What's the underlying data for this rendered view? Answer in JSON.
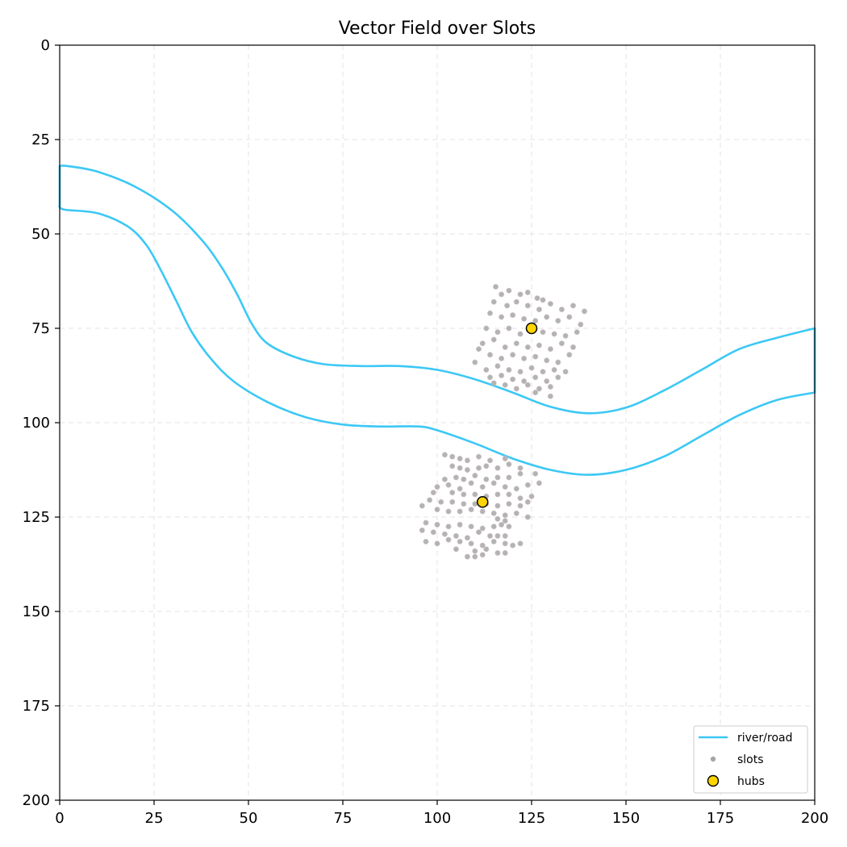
{
  "chart_data": {
    "type": "scatter",
    "title": "Vector Field over Slots",
    "xlabel": "",
    "ylabel": "",
    "xlim": [
      0,
      200
    ],
    "ylim": [
      200,
      0
    ],
    "y_inverted": true,
    "grid": true,
    "x_ticks": [
      "0",
      "25",
      "50",
      "75",
      "100",
      "125",
      "150",
      "175",
      "200"
    ],
    "y_ticks": [
      "0",
      "25",
      "50",
      "75",
      "100",
      "125",
      "150",
      "175",
      "200"
    ],
    "legend_position": "bottom-right",
    "legend": [
      {
        "label": "river/road",
        "kind": "line",
        "color": "#3cc8f5"
      },
      {
        "label": "slots",
        "kind": "dot",
        "color": "#a6a6a6"
      },
      {
        "label": "hubs",
        "kind": "hub",
        "color": "#ffd400"
      }
    ],
    "series": [
      {
        "name": "river/road",
        "type": "line",
        "color": "#3cc8f5",
        "upper_edge": [
          [
            0,
            32
          ],
          [
            2,
            32
          ],
          [
            10,
            33.5
          ],
          [
            20,
            37.5
          ],
          [
            30,
            44
          ],
          [
            38,
            52
          ],
          [
            43,
            59
          ],
          [
            47,
            66
          ],
          [
            51,
            74
          ],
          [
            55,
            79
          ],
          [
            62,
            82.5
          ],
          [
            70,
            84.5
          ],
          [
            80,
            85
          ],
          [
            90,
            85
          ],
          [
            100,
            86
          ],
          [
            110,
            88.5
          ],
          [
            120,
            92
          ],
          [
            130,
            95.8
          ],
          [
            140,
            97.5
          ],
          [
            150,
            96
          ],
          [
            160,
            91.5
          ],
          [
            170,
            86
          ],
          [
            180,
            80.5
          ],
          [
            190,
            77.5
          ],
          [
            200,
            75
          ]
        ],
        "lower_edge": [
          [
            0,
            42
          ],
          [
            1,
            43.5
          ],
          [
            10,
            44.5
          ],
          [
            18,
            48
          ],
          [
            23,
            53
          ],
          [
            27,
            60
          ],
          [
            31,
            68
          ],
          [
            35,
            76
          ],
          [
            40,
            83
          ],
          [
            46,
            89
          ],
          [
            55,
            94.5
          ],
          [
            65,
            98.5
          ],
          [
            75,
            100.5
          ],
          [
            85,
            101
          ],
          [
            95,
            101
          ],
          [
            100,
            102
          ],
          [
            110,
            105.5
          ],
          [
            120,
            109.5
          ],
          [
            130,
            112.5
          ],
          [
            140,
            113.8
          ],
          [
            150,
            112.5
          ],
          [
            160,
            109
          ],
          [
            170,
            103.5
          ],
          [
            180,
            98
          ],
          [
            190,
            94
          ],
          [
            200,
            92
          ]
        ]
      },
      {
        "name": "slots",
        "type": "scatter",
        "color": "#a6a6a6",
        "points": [
          [
            115.5,
            64
          ],
          [
            117,
            66
          ],
          [
            119,
            65
          ],
          [
            122,
            66
          ],
          [
            124,
            65.5
          ],
          [
            126.5,
            67
          ],
          [
            128,
            67.5
          ],
          [
            115,
            68
          ],
          [
            118.5,
            69
          ],
          [
            121,
            68
          ],
          [
            124,
            69
          ],
          [
            127,
            70
          ],
          [
            130,
            68.5
          ],
          [
            133,
            70
          ],
          [
            136,
            69
          ],
          [
            139,
            70.5
          ],
          [
            114,
            71
          ],
          [
            117,
            72
          ],
          [
            120,
            71.5
          ],
          [
            123,
            72.5
          ],
          [
            126,
            73
          ],
          [
            129,
            72
          ],
          [
            132,
            73
          ],
          [
            135,
            72
          ],
          [
            138,
            74
          ],
          [
            113,
            75
          ],
          [
            116,
            76
          ],
          [
            119,
            75
          ],
          [
            122,
            76.5
          ],
          [
            128,
            76
          ],
          [
            131,
            76.5
          ],
          [
            134,
            77
          ],
          [
            137,
            76
          ],
          [
            112,
            79
          ],
          [
            115,
            78
          ],
          [
            118,
            80
          ],
          [
            121,
            79
          ],
          [
            124,
            80
          ],
          [
            127,
            79.5
          ],
          [
            130,
            80.5
          ],
          [
            133,
            79
          ],
          [
            136,
            80
          ],
          [
            111,
            80.5
          ],
          [
            114,
            82
          ],
          [
            117,
            83
          ],
          [
            120,
            82
          ],
          [
            123,
            83
          ],
          [
            126,
            82.5
          ],
          [
            129,
            83.5
          ],
          [
            132,
            84
          ],
          [
            135,
            82
          ],
          [
            110,
            84
          ],
          [
            113,
            86
          ],
          [
            116,
            85
          ],
          [
            119,
            86
          ],
          [
            122,
            86.5
          ],
          [
            125,
            85.5
          ],
          [
            128,
            86.5
          ],
          [
            131,
            86
          ],
          [
            134,
            86.5
          ],
          [
            114,
            88
          ],
          [
            117,
            87.5
          ],
          [
            120,
            88.5
          ],
          [
            123,
            89
          ],
          [
            126,
            88
          ],
          [
            129,
            89
          ],
          [
            132,
            88
          ],
          [
            115,
            89.5
          ],
          [
            118,
            90
          ],
          [
            121,
            91
          ],
          [
            124,
            90
          ],
          [
            127,
            91
          ],
          [
            130,
            90.5
          ],
          [
            126,
            92
          ],
          [
            130,
            93
          ],
          [
            102,
            108.5
          ],
          [
            104,
            109
          ],
          [
            106,
            109.5
          ],
          [
            108,
            110
          ],
          [
            111,
            109
          ],
          [
            114,
            110
          ],
          [
            118,
            109.5
          ],
          [
            104,
            111.5
          ],
          [
            106,
            112
          ],
          [
            108,
            112.5
          ],
          [
            111,
            112
          ],
          [
            113,
            111.5
          ],
          [
            116,
            112
          ],
          [
            119,
            111
          ],
          [
            122,
            112
          ],
          [
            102,
            115
          ],
          [
            105,
            114.5
          ],
          [
            107,
            115
          ],
          [
            110,
            114
          ],
          [
            113,
            115
          ],
          [
            116,
            114.5
          ],
          [
            119,
            114.5
          ],
          [
            122,
            113.5
          ],
          [
            126,
            113.5
          ],
          [
            100,
            117
          ],
          [
            103,
            116.5
          ],
          [
            106,
            117.5
          ],
          [
            109,
            116
          ],
          [
            112,
            117
          ],
          [
            115,
            116
          ],
          [
            118,
            117
          ],
          [
            121,
            117.5
          ],
          [
            124,
            116.5
          ],
          [
            127,
            116
          ],
          [
            99,
            118.5
          ],
          [
            104,
            118.5
          ],
          [
            107,
            119
          ],
          [
            110,
            119
          ],
          [
            113,
            119.5
          ],
          [
            116,
            119
          ],
          [
            119,
            119
          ],
          [
            122,
            120
          ],
          [
            125,
            119.5
          ],
          [
            98,
            120.5
          ],
          [
            101,
            121
          ],
          [
            104,
            121
          ],
          [
            107,
            121.5
          ],
          [
            110,
            121.5
          ],
          [
            113,
            121.5
          ],
          [
            116,
            122
          ],
          [
            119,
            121.5
          ],
          [
            122,
            122
          ],
          [
            124,
            121
          ],
          [
            96,
            122
          ],
          [
            100,
            123
          ],
          [
            103,
            123.5
          ],
          [
            106,
            123.5
          ],
          [
            109,
            123
          ],
          [
            112,
            123.5
          ],
          [
            115,
            124
          ],
          [
            118,
            124.5
          ],
          [
            121,
            124
          ],
          [
            124,
            125
          ],
          [
            116,
            125.5
          ],
          [
            118,
            126
          ],
          [
            97,
            126.5
          ],
          [
            100,
            127
          ],
          [
            103,
            127.5
          ],
          [
            106,
            127
          ],
          [
            109,
            127.5
          ],
          [
            112,
            128
          ],
          [
            115,
            127.5
          ],
          [
            117,
            127
          ],
          [
            119,
            127.5
          ],
          [
            96,
            128.5
          ],
          [
            99,
            129
          ],
          [
            102,
            129.5
          ],
          [
            105,
            130
          ],
          [
            108,
            130.5
          ],
          [
            111,
            129
          ],
          [
            114,
            130
          ],
          [
            116,
            130
          ],
          [
            118,
            130
          ],
          [
            97,
            131.5
          ],
          [
            100,
            132
          ],
          [
            103,
            131
          ],
          [
            106,
            131.5
          ],
          [
            109,
            132
          ],
          [
            112,
            132.5
          ],
          [
            115,
            131.5
          ],
          [
            118,
            132
          ],
          [
            120,
            132.5
          ],
          [
            122,
            132
          ],
          [
            105,
            133.5
          ],
          [
            110,
            134
          ],
          [
            113,
            133.5
          ],
          [
            116,
            134.5
          ],
          [
            118,
            134.5
          ],
          [
            108,
            135.5
          ],
          [
            110,
            135.5
          ],
          [
            112,
            135
          ]
        ]
      },
      {
        "name": "hubs",
        "type": "scatter",
        "color": "#ffd400",
        "points": [
          [
            125,
            75
          ],
          [
            112,
            121
          ]
        ]
      }
    ]
  }
}
